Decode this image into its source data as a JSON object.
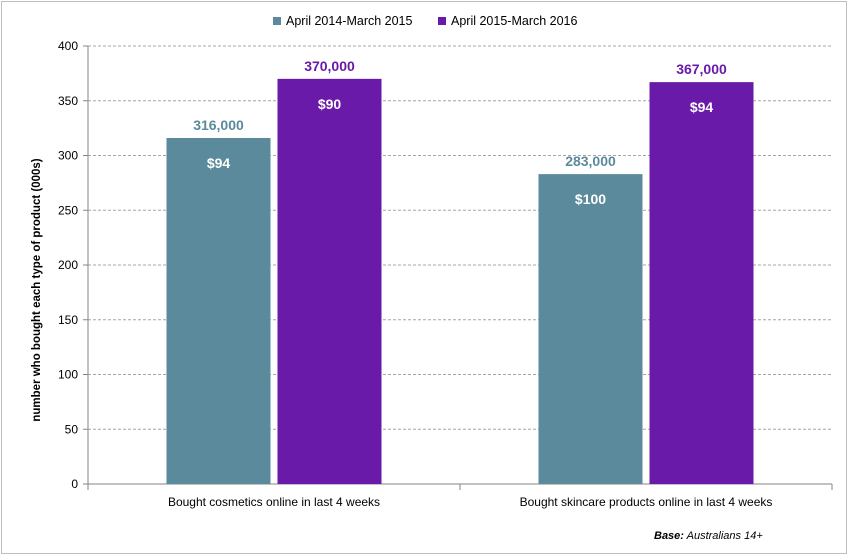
{
  "chart_data": {
    "type": "bar",
    "title": "",
    "xlabel": "",
    "ylabel": "number who bought each type of product (000s)",
    "ylim": [
      0,
      400
    ],
    "yticks": [
      0,
      50,
      100,
      150,
      200,
      250,
      300,
      350,
      400
    ],
    "grid": true,
    "legend_position": "top",
    "categories": [
      "Bought cosmetics online in  last 4 weeks",
      "Bought skincare products online in  last 4 weeks"
    ],
    "series": [
      {
        "name": "April 2014-March 2015",
        "color": "#5a8a9b",
        "label_color": "#5a8a9b",
        "values": [
          316,
          283
        ],
        "value_labels": [
          "316,000",
          "283,000"
        ],
        "inner_labels": [
          "$94",
          "$100"
        ]
      },
      {
        "name": "April 2015-March 2016",
        "color": "#6a1aa8",
        "label_color": "#6a1aa8",
        "values": [
          370,
          367
        ],
        "value_labels": [
          "370,000",
          "367,000"
        ],
        "inner_labels": [
          "$90",
          "$94"
        ]
      }
    ],
    "footnote_bold": "Base:",
    "footnote_text": " Australians 14+"
  }
}
